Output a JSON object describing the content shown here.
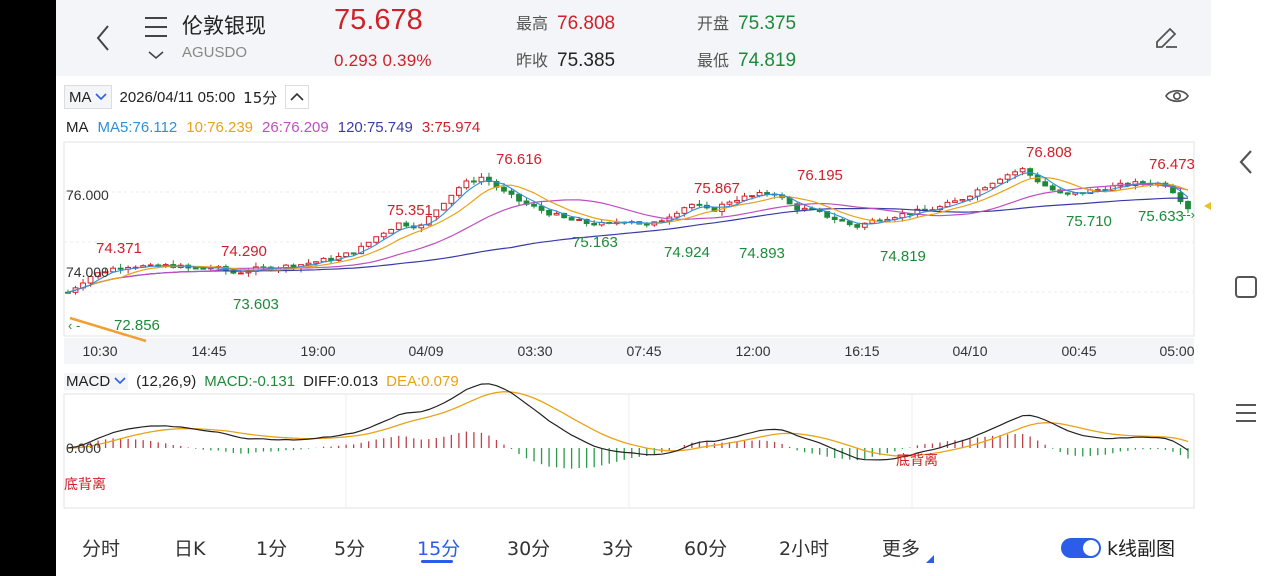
{
  "header": {
    "name": "伦敦银现",
    "code": "AGUSDO",
    "price": "75.678",
    "change": "0.293",
    "change_pct": "0.39%",
    "high_label": "最高",
    "high": "76.808",
    "open_label": "开盘",
    "open": "75.375",
    "prev_close_label": "昨收",
    "prev_close": "75.385",
    "low_label": "最低",
    "low": "74.819"
  },
  "toolbar": {
    "indicator": "MA",
    "datetime": "2026/04/11 05:00",
    "period": "15分"
  },
  "ma": {
    "label": "MA",
    "ma5": "MA5:76.112",
    "ma10": "10:76.239",
    "ma26": "26:76.209",
    "ma120": "120:75.749",
    "ma3": "3:75.974",
    "colors": {
      "ma5": "#2f8fd8",
      "ma10": "#e8a317",
      "ma26": "#c04ec0",
      "ma120": "#3b3ba8",
      "ma3": "#d0202a"
    }
  },
  "macd": {
    "name": "MACD",
    "params": "(12,26,9)",
    "macd": "MACD:-0.131",
    "diff": "DIFF:0.013",
    "dea": "DEA:0.079",
    "zero": "0.000",
    "divergence": "底背离"
  },
  "chart_data": {
    "type": "candlestick",
    "y_ticks": [
      "76.000",
      "74.000"
    ],
    "x_ticks": [
      "10:30",
      "14:45",
      "19:00",
      "04/09",
      "03:30",
      "07:45",
      "12:00",
      "16:15",
      "04/10",
      "00:45",
      "05:00"
    ],
    "annotations": [
      {
        "text": "74.371",
        "kind": "high"
      },
      {
        "text": "74.290",
        "kind": "high"
      },
      {
        "text": "73.603",
        "kind": "low"
      },
      {
        "text": "72.856",
        "kind": "low"
      },
      {
        "text": "75.351",
        "kind": "high"
      },
      {
        "text": "76.616",
        "kind": "high"
      },
      {
        "text": "75.163",
        "kind": "low"
      },
      {
        "text": "74.924",
        "kind": "low"
      },
      {
        "text": "74.893",
        "kind": "low"
      },
      {
        "text": "75.867",
        "kind": "high"
      },
      {
        "text": "76.195",
        "kind": "high"
      },
      {
        "text": "74.819",
        "kind": "low"
      },
      {
        "text": "76.808",
        "kind": "high"
      },
      {
        "text": "75.710",
        "kind": "low"
      },
      {
        "text": "76.473",
        "kind": "high"
      },
      {
        "text": "75.633",
        "kind": "low"
      }
    ],
    "close_path": [
      73.5,
      73.9,
      74.1,
      74.2,
      74.15,
      74.2,
      74.1,
      74.15,
      74.0,
      74.1,
      74.15,
      74.2,
      74.3,
      74.4,
      74.6,
      75.0,
      75.3,
      75.2,
      75.8,
      76.3,
      76.5,
      76.1,
      75.8,
      75.6,
      75.4,
      75.3,
      75.25,
      75.4,
      75.2,
      75.5,
      75.8,
      75.6,
      75.9,
      76.0,
      76.1,
      75.7,
      75.6,
      75.4,
      75.2,
      75.4,
      75.5,
      75.6,
      75.7,
      75.9,
      76.2,
      76.5,
      76.7,
      76.3,
      76.0,
      76.1,
      76.2,
      76.3,
      76.35,
      76.3,
      75.7
    ]
  },
  "tabs": [
    "分时",
    "日K",
    "1分",
    "5分",
    "15分",
    "30分",
    "3分",
    "60分",
    "2小时",
    "更多"
  ],
  "active_tab": "15分",
  "toggle_label": "k线副图"
}
